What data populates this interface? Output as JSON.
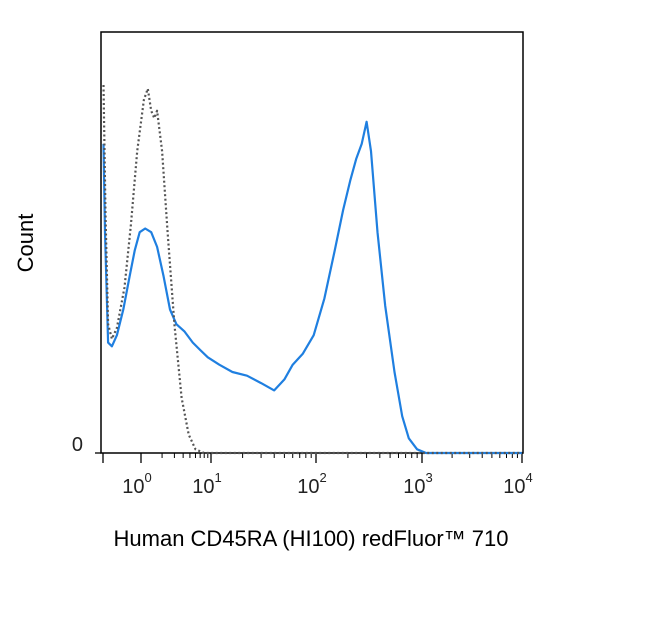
{
  "chart_data": {
    "type": "line",
    "title": "",
    "xlabel": "Human CD45RA (HI100) redFluor™ 710",
    "ylabel": "Count",
    "x_scale": "biexponential",
    "xlim": [
      -0.5,
      10000
    ],
    "ylim": [
      0,
      1.0
    ],
    "x_ticks": [
      {
        "value": 1,
        "base": "10",
        "exp": "0"
      },
      {
        "value": 10,
        "base": "10",
        "exp": "1"
      },
      {
        "value": 100,
        "base": "10",
        "exp": "2"
      },
      {
        "value": 1000,
        "base": "10",
        "exp": "3"
      },
      {
        "value": 10000,
        "base": "10",
        "exp": "4"
      }
    ],
    "y_ticks": [
      {
        "value": 0,
        "label": "0"
      }
    ],
    "grid": false,
    "series": [
      {
        "style": "solid",
        "color": "#1f7fe0",
        "points": [
          [
            -0.48,
            0.84
          ],
          [
            -0.42,
            0.6
          ],
          [
            -0.3,
            0.3
          ],
          [
            -0.15,
            0.29
          ],
          [
            0.05,
            0.32
          ],
          [
            0.3,
            0.39
          ],
          [
            0.55,
            0.48
          ],
          [
            0.75,
            0.55
          ],
          [
            0.95,
            0.6
          ],
          [
            1.15,
            0.61
          ],
          [
            1.4,
            0.6
          ],
          [
            1.7,
            0.56
          ],
          [
            2.1,
            0.48
          ],
          [
            2.6,
            0.39
          ],
          [
            3.2,
            0.35
          ],
          [
            4.2,
            0.33
          ],
          [
            5.5,
            0.3
          ],
          [
            7,
            0.28
          ],
          [
            9,
            0.26
          ],
          [
            12,
            0.24
          ],
          [
            16,
            0.22
          ],
          [
            22,
            0.21
          ],
          [
            30,
            0.19
          ],
          [
            40,
            0.17
          ],
          [
            50,
            0.2
          ],
          [
            60,
            0.24
          ],
          [
            75,
            0.27
          ],
          [
            95,
            0.32
          ],
          [
            120,
            0.42
          ],
          [
            150,
            0.55
          ],
          [
            180,
            0.66
          ],
          [
            210,
            0.74
          ],
          [
            240,
            0.8
          ],
          [
            270,
            0.84
          ],
          [
            300,
            0.9
          ],
          [
            330,
            0.82
          ],
          [
            380,
            0.6
          ],
          [
            450,
            0.4
          ],
          [
            550,
            0.22
          ],
          [
            650,
            0.1
          ],
          [
            750,
            0.04
          ],
          [
            900,
            0.01
          ],
          [
            1100,
            0.0
          ],
          [
            10000,
            0.0
          ]
        ]
      },
      {
        "style": "dotted",
        "color": "#555555",
        "points": [
          [
            -0.48,
            1.0
          ],
          [
            -0.4,
            0.65
          ],
          [
            -0.3,
            0.35
          ],
          [
            -0.15,
            0.31
          ],
          [
            0.05,
            0.34
          ],
          [
            0.35,
            0.45
          ],
          [
            0.6,
            0.62
          ],
          [
            0.85,
            0.82
          ],
          [
            1.1,
            0.96
          ],
          [
            1.25,
            0.99
          ],
          [
            1.4,
            0.93
          ],
          [
            1.55,
            0.91
          ],
          [
            1.7,
            0.93
          ],
          [
            2.0,
            0.82
          ],
          [
            2.4,
            0.6
          ],
          [
            3.0,
            0.35
          ],
          [
            3.8,
            0.15
          ],
          [
            4.8,
            0.05
          ],
          [
            6.0,
            0.01
          ],
          [
            8,
            0.0
          ],
          [
            10000,
            0.0
          ]
        ]
      }
    ]
  }
}
